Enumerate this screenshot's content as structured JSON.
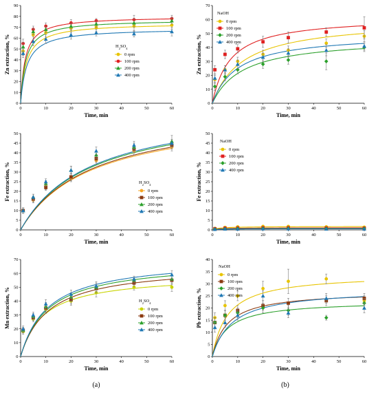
{
  "figure_labels": [
    "(a)",
    "(b)"
  ],
  "colors": {
    "0 rpm": "#e8c400",
    "100 rpm": "#e02020",
    "200 rpm": "#2ca02c",
    "400 rpm": "#1f78b4"
  },
  "chart_data": [
    {
      "type": "scatter",
      "xlabel": "Time, min",
      "ylabel": "Zn extraction, %",
      "xlim": [
        0,
        60
      ],
      "ylim": [
        0,
        90
      ],
      "xticks": [
        0,
        10,
        20,
        30,
        40,
        50,
        60
      ],
      "yticks": [
        0,
        10,
        20,
        30,
        40,
        50,
        60,
        70,
        80,
        90
      ],
      "legend_title": "H2SO4",
      "legend_position": "center-right",
      "x": [
        0,
        1,
        5,
        10,
        20,
        30,
        45,
        60
      ],
      "series": [
        {
          "name": "0 rpm",
          "marker": "circle",
          "color": "#e8c400",
          "values": [
            0,
            48,
            63,
            65,
            69,
            70,
            71,
            72
          ],
          "err": [
            0,
            4,
            4,
            4,
            4,
            4,
            5,
            4
          ],
          "fit": {
            "a": 74,
            "k": 2.3
          }
        },
        {
          "name": "100 rpm",
          "marker": "circle",
          "color": "#e02020",
          "values": [
            0,
            55,
            68,
            71,
            74,
            76,
            77,
            78
          ],
          "err": [
            0,
            4,
            3,
            3,
            3,
            2,
            4,
            3
          ],
          "fit": {
            "a": 80,
            "k": 1.8
          }
        },
        {
          "name": "200 rpm",
          "marker": "triangle",
          "color": "#2ca02c",
          "values": [
            0,
            52,
            66,
            68,
            71,
            73,
            74,
            76
          ],
          "err": [
            0,
            4,
            3,
            3,
            3,
            3,
            4,
            3
          ],
          "fit": {
            "a": 77,
            "k": 2.0
          }
        },
        {
          "name": "400 rpm",
          "marker": "triangle",
          "color": "#1f78b4",
          "values": [
            0,
            46,
            57,
            59,
            63,
            65,
            64,
            66
          ],
          "err": [
            0,
            4,
            4,
            4,
            4,
            3,
            3,
            4
          ],
          "fit": {
            "a": 69,
            "k": 2.5
          }
        }
      ]
    },
    {
      "type": "scatter",
      "xlabel": "Time, min",
      "ylabel": "Zn extraction, %",
      "xlim": [
        0,
        60
      ],
      "ylim": [
        0,
        70
      ],
      "xticks": [
        0,
        10,
        20,
        30,
        40,
        50,
        60
      ],
      "yticks": [
        0,
        10,
        20,
        30,
        40,
        50,
        60,
        70
      ],
      "legend_title": "NaOH",
      "legend_position": "top-left",
      "x": [
        0,
        1,
        5,
        10,
        20,
        30,
        45,
        60
      ],
      "series": [
        {
          "name": "0 rpm",
          "marker": "circle",
          "color": "#e8c400",
          "values": [
            0,
            17,
            24,
            30,
            35,
            38,
            43,
            48
          ],
          "err": [
            0,
            3,
            3,
            3,
            3,
            3,
            3,
            4
          ],
          "fit": {
            "a": 60,
            "k": 12
          }
        },
        {
          "name": "100 rpm",
          "marker": "square",
          "color": "#e02020",
          "values": [
            0,
            24,
            35,
            39,
            44,
            47,
            51,
            54
          ],
          "err": [
            0,
            3,
            3,
            3,
            4,
            4,
            3,
            8
          ],
          "fit": {
            "a": 62,
            "k": 7
          }
        },
        {
          "name": "200 rpm",
          "marker": "diamond",
          "color": "#2ca02c",
          "values": [
            0,
            12,
            19,
            24,
            28,
            31,
            30,
            40
          ],
          "err": [
            0,
            3,
            3,
            3,
            3,
            3,
            6,
            3
          ],
          "fit": {
            "a": 47,
            "k": 12
          }
        },
        {
          "name": "400 rpm",
          "marker": "triangle",
          "color": "#1f78b4",
          "values": [
            0,
            18,
            24,
            28,
            33,
            36,
            38,
            41
          ],
          "err": [
            0,
            3,
            3,
            3,
            3,
            3,
            4,
            3
          ],
          "fit": {
            "a": 50,
            "k": 10
          }
        }
      ]
    },
    {
      "type": "scatter",
      "xlabel": "Time, min",
      "ylabel": "Fe extraction, %",
      "xlim": [
        0,
        60
      ],
      "ylim": [
        0,
        50
      ],
      "xticks": [
        0,
        10,
        20,
        30,
        40,
        50,
        60
      ],
      "yticks": [
        0,
        5,
        10,
        15,
        20,
        25,
        30,
        35,
        40,
        45,
        50
      ],
      "legend_title": "H2SO4",
      "legend_position": "bottom-right",
      "x": [
        0,
        1,
        5,
        10,
        20,
        30,
        45,
        60
      ],
      "series": [
        {
          "name": "0 rpm",
          "marker": "circle",
          "color": "#f5a623",
          "values": [
            0,
            10,
            15.5,
            22.5,
            27,
            36,
            41,
            43
          ],
          "err": [
            0,
            1.5,
            1.5,
            1.5,
            2,
            2,
            2,
            2
          ],
          "fit": {
            "a": 62,
            "k": 28
          }
        },
        {
          "name": "100 rpm",
          "marker": "square",
          "color": "#8b3a10",
          "values": [
            0,
            10,
            16,
            22,
            27.5,
            37,
            42,
            44
          ],
          "err": [
            0,
            1.5,
            1.5,
            1.5,
            2,
            2,
            2,
            2
          ],
          "fit": {
            "a": 63,
            "k": 28
          }
        },
        {
          "name": "200 rpm",
          "marker": "triangle",
          "color": "#2ca02c",
          "values": [
            0,
            10,
            17,
            24,
            31,
            39,
            43,
            46
          ],
          "err": [
            0,
            1.5,
            1.5,
            1.5,
            2,
            2,
            2,
            3
          ],
          "fit": {
            "a": 65,
            "k": 28
          }
        },
        {
          "name": "400 rpm",
          "marker": "triangle",
          "color": "#1f78b4",
          "values": [
            0,
            10,
            17,
            25,
            31,
            41,
            44,
            45
          ],
          "err": [
            0,
            1.5,
            1.5,
            1.5,
            2,
            2,
            2,
            2
          ],
          "fit": {
            "a": 66,
            "k": 28
          }
        }
      ]
    },
    {
      "type": "scatter",
      "xlabel": "Time, min",
      "ylabel": "Fe extraction, %",
      "xlim": [
        0,
        60
      ],
      "ylim": [
        0,
        50
      ],
      "xticks": [
        0,
        10,
        20,
        30,
        40,
        50,
        60
      ],
      "yticks": [
        0,
        5,
        10,
        15,
        20,
        25,
        30,
        35,
        40,
        45,
        50
      ],
      "legend_title": "NaOH",
      "legend_position": "top-left",
      "x": [
        0,
        1,
        5,
        10,
        20,
        30,
        45,
        60
      ],
      "series": [
        {
          "name": "0 rpm",
          "marker": "circle",
          "color": "#e8c400",
          "values": [
            0,
            0.8,
            1.3,
            1.6,
            1.8,
            1.8,
            1.6,
            1.4
          ],
          "err": [
            0,
            0.3,
            0.3,
            0.3,
            0.3,
            0.3,
            0.3,
            0.3
          ],
          "fit": {
            "a": 1.8,
            "k": 3
          }
        },
        {
          "name": "100 rpm",
          "marker": "square",
          "color": "#e02020",
          "values": [
            0,
            0.6,
            0.9,
            1.0,
            1.1,
            1.1,
            1.0,
            0.9
          ],
          "err": [
            0,
            0.3,
            0.3,
            0.3,
            0.3,
            0.3,
            0.3,
            0.3
          ],
          "fit": {
            "a": 1.1,
            "k": 3
          }
        },
        {
          "name": "200 rpm",
          "marker": "diamond",
          "color": "#2ca02c",
          "values": [
            0,
            0.4,
            0.6,
            0.7,
            0.8,
            0.8,
            0.7,
            0.7
          ],
          "err": [
            0,
            0.3,
            0.3,
            0.3,
            0.3,
            0.3,
            0.3,
            0.3
          ],
          "fit": {
            "a": 0.8,
            "k": 3
          }
        },
        {
          "name": "400 rpm",
          "marker": "triangle",
          "color": "#1f78b4",
          "values": [
            0,
            0.3,
            0.5,
            0.5,
            0.6,
            0.6,
            0.5,
            0.5
          ],
          "err": [
            0,
            0.3,
            0.3,
            0.3,
            0.3,
            0.3,
            0.3,
            0.3
          ],
          "fit": {
            "a": 0.6,
            "k": 3
          }
        }
      ]
    },
    {
      "type": "scatter",
      "xlabel": "Time, min",
      "ylabel": "Mn extraction, %",
      "xlim": [
        0,
        60
      ],
      "ylim": [
        0,
        70
      ],
      "xticks": [
        0,
        10,
        20,
        30,
        40,
        50,
        60
      ],
      "yticks": [
        0,
        10,
        20,
        30,
        40,
        50,
        60,
        70
      ],
      "legend_title": "H2SO4",
      "legend_position": "bottom-right",
      "x": [
        0,
        1,
        5,
        10,
        20,
        30,
        45,
        60
      ],
      "series": [
        {
          "name": "0 rpm",
          "marker": "circle",
          "color": "#c8d400",
          "values": [
            0,
            18,
            27,
            34,
            40,
            46,
            50,
            50
          ],
          "err": [
            0,
            2,
            2,
            3,
            3,
            3,
            2,
            3
          ],
          "fit": {
            "a": 59,
            "k": 9
          }
        },
        {
          "name": "100 rpm",
          "marker": "square",
          "color": "#8b3a10",
          "values": [
            0,
            19,
            28,
            35,
            41,
            49,
            53,
            55
          ],
          "err": [
            0,
            2,
            2,
            3,
            3,
            3,
            2,
            3
          ],
          "fit": {
            "a": 66,
            "k": 11
          }
        },
        {
          "name": "200 rpm",
          "marker": "triangle",
          "color": "#2ca02c",
          "values": [
            0,
            19,
            29,
            36,
            43,
            50,
            55,
            56
          ],
          "err": [
            0,
            2,
            2,
            3,
            3,
            3,
            2,
            3
          ],
          "fit": {
            "a": 69,
            "k": 11
          }
        },
        {
          "name": "400 rpm",
          "marker": "triangle",
          "color": "#1f78b4",
          "values": [
            0,
            20,
            30,
            38,
            45,
            51,
            56,
            59
          ],
          "err": [
            0,
            2,
            2,
            3,
            3,
            3,
            2,
            3
          ],
          "fit": {
            "a": 71,
            "k": 11
          }
        }
      ]
    },
    {
      "type": "scatter",
      "xlabel": "Time, min",
      "ylabel": "Pb extraction, %",
      "xlim": [
        0,
        60
      ],
      "ylim": [
        0,
        40
      ],
      "xticks": [
        0,
        10,
        20,
        30,
        40,
        50,
        60
      ],
      "yticks": [
        0,
        5,
        10,
        15,
        20,
        25,
        30,
        35,
        40
      ],
      "legend_title": "NaOH",
      "legend_position": "top-left",
      "x": [
        0,
        1,
        5,
        10,
        20,
        30,
        45,
        60
      ],
      "series": [
        {
          "name": "0 rpm",
          "marker": "circle",
          "color": "#e8c400",
          "values": [
            0,
            16,
            21,
            25,
            28,
            31,
            32,
            23
          ],
          "err": [
            0,
            2,
            2,
            2,
            3,
            5,
            2,
            2
          ],
          "fit": {
            "a": 34,
            "k": 6
          }
        },
        {
          "name": "100 rpm",
          "marker": "square",
          "color": "#8b3a10",
          "values": [
            0,
            14,
            17,
            19,
            21,
            22,
            23,
            24
          ],
          "err": [
            0,
            2,
            2,
            2,
            2,
            2,
            2,
            2
          ],
          "fit": {
            "a": 27,
            "k": 6
          }
        },
        {
          "name": "200 rpm",
          "marker": "diamond",
          "color": "#2ca02c",
          "values": [
            0,
            14,
            17,
            18,
            20,
            19,
            16,
            22
          ],
          "err": [
            0,
            2,
            2,
            2,
            2,
            2,
            1,
            2
          ],
          "fit": {
            "a": 23,
            "k": 6
          }
        },
        {
          "name": "400 rpm",
          "marker": "triangle",
          "color": "#1f78b4",
          "values": [
            0,
            12,
            14,
            17,
            25,
            18,
            24,
            20
          ],
          "err": [
            0,
            2,
            2,
            2,
            2,
            2,
            2,
            2
          ],
          "fit": {
            "a": 28,
            "k": 8
          }
        }
      ]
    }
  ]
}
